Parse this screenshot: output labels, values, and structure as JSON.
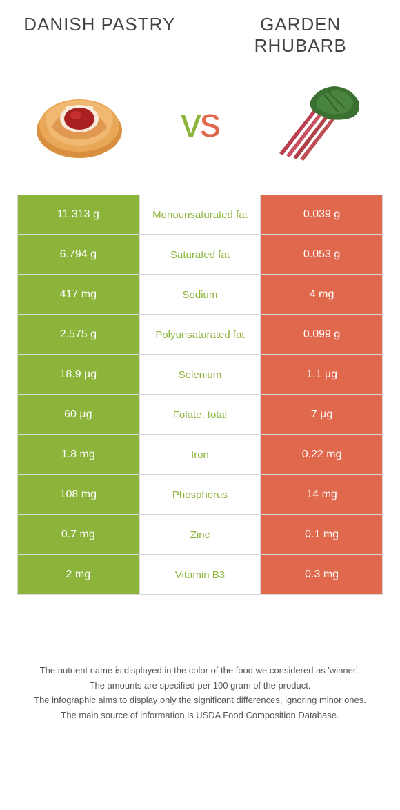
{
  "colors": {
    "left": "#8cb33a",
    "right": "#e0684c",
    "rowBorder": "#d8d8d8",
    "titleText": "#444444",
    "footerText": "#555555"
  },
  "leftFood": {
    "title": "Danish pastry"
  },
  "rightFood": {
    "title": "Garden rhubarb"
  },
  "vs": "vs",
  "rows": [
    {
      "left": "11.313 g",
      "nutrient": "Monounsaturated fat",
      "right": "0.039 g",
      "winner": "left"
    },
    {
      "left": "6.794 g",
      "nutrient": "Saturated fat",
      "right": "0.053 g",
      "winner": "left"
    },
    {
      "left": "417 mg",
      "nutrient": "Sodium",
      "right": "4 mg",
      "winner": "left"
    },
    {
      "left": "2.575 g",
      "nutrient": "Polyunsaturated fat",
      "right": "0.099 g",
      "winner": "left"
    },
    {
      "left": "18.9 µg",
      "nutrient": "Selenium",
      "right": "1.1 µg",
      "winner": "left"
    },
    {
      "left": "60 µg",
      "nutrient": "Folate, total",
      "right": "7 µg",
      "winner": "left"
    },
    {
      "left": "1.8 mg",
      "nutrient": "Iron",
      "right": "0.22 mg",
      "winner": "left"
    },
    {
      "left": "108 mg",
      "nutrient": "Phosphorus",
      "right": "14 mg",
      "winner": "left"
    },
    {
      "left": "0.7 mg",
      "nutrient": "Zinc",
      "right": "0.1 mg",
      "winner": "left"
    },
    {
      "left": "2 mg",
      "nutrient": "Vitamin B3",
      "right": "0.3 mg",
      "winner": "left"
    }
  ],
  "footer": {
    "line1": "The nutrient name is displayed in the color of the food we considered as 'winner'.",
    "line2": "The amounts are specified per 100 gram of the product.",
    "line3": "The infographic aims to display only the significant differences, ignoring minor ones.",
    "line4": "The main source of information is USDA Food Composition Database."
  }
}
